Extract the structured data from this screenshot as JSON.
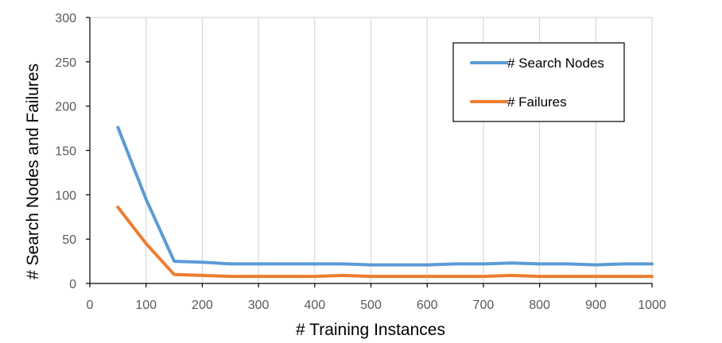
{
  "chart_data": {
    "type": "line",
    "title": "",
    "xlabel": "# Training Instances",
    "ylabel": "# Search Nodes and Failures",
    "xlim": [
      0,
      1000
    ],
    "ylim": [
      0,
      300
    ],
    "xticks": [
      0,
      100,
      200,
      300,
      400,
      500,
      600,
      700,
      800,
      900,
      1000
    ],
    "yticks": [
      0,
      50,
      100,
      150,
      200,
      250,
      300
    ],
    "grid": true,
    "legend_position": "top-right",
    "x": [
      50,
      100,
      150,
      200,
      250,
      300,
      350,
      400,
      450,
      500,
      550,
      600,
      650,
      700,
      750,
      800,
      850,
      900,
      950,
      1000
    ],
    "series": [
      {
        "name": "# Search Nodes",
        "color": "#5B9BD5",
        "values": [
          176,
          95,
          25,
          24,
          22,
          22,
          22,
          22,
          22,
          21,
          21,
          21,
          22,
          22,
          23,
          22,
          22,
          21,
          22,
          22
        ]
      },
      {
        "name": "# Failures",
        "color": "#ED7D31",
        "values": [
          86,
          45,
          10,
          9,
          8,
          8,
          8,
          8,
          9,
          8,
          8,
          8,
          8,
          8,
          9,
          8,
          8,
          8,
          8,
          8
        ]
      }
    ]
  }
}
